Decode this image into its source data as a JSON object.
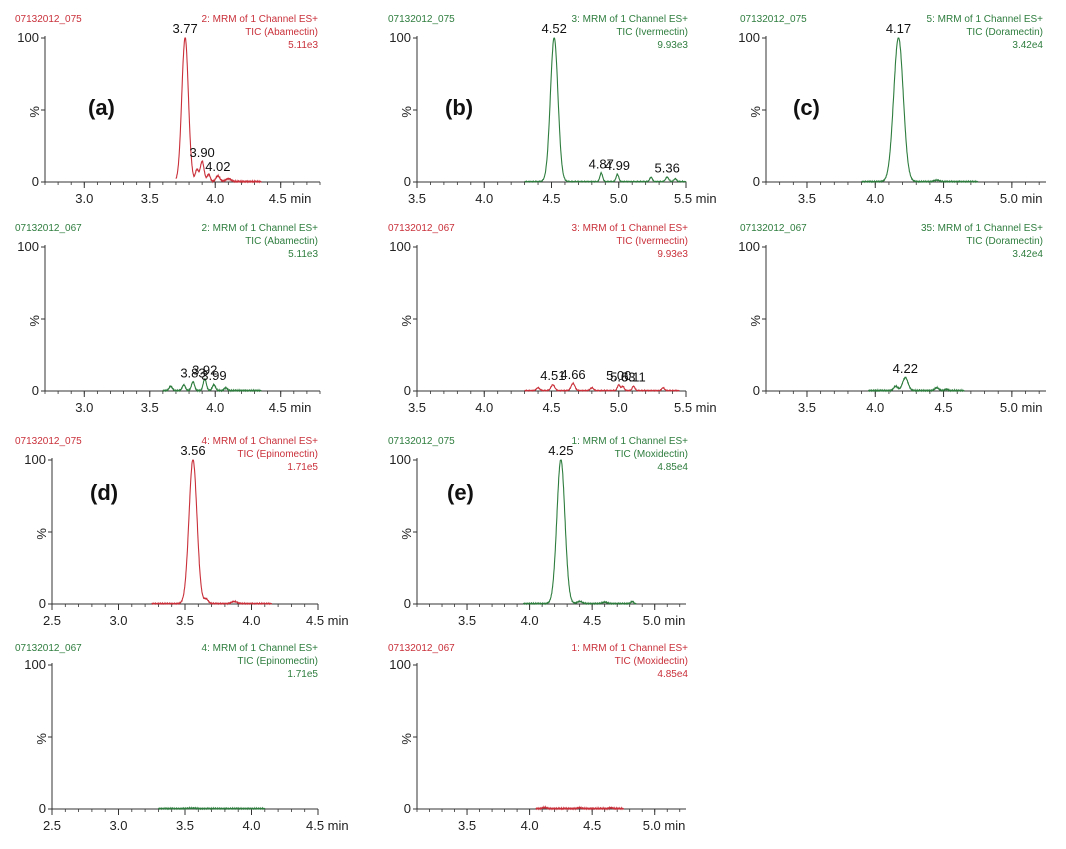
{
  "colors": {
    "red": "#c9303a",
    "green": "#2e7d3e",
    "axis": "#333333"
  },
  "chart_data": [
    {
      "type": "line",
      "panel_label": "(a)",
      "sample": "07132012_075",
      "channel": "2: MRM of 1 Channel ES+",
      "tic": "TIC (Abamectin)",
      "intensity": "5.11e3",
      "color": "red",
      "xlim": [
        2.7,
        4.8
      ],
      "ylim": [
        0,
        100
      ],
      "x_ticks": [
        "3.0",
        "3.5",
        "4.0",
        "4.5 min"
      ],
      "x_tick_values": [
        3.0,
        3.5,
        4.0,
        4.5
      ],
      "y_ticks": [
        "0",
        "%",
        "100"
      ],
      "peaks": [
        {
          "x": 3.77,
          "y": 100,
          "w": 0.025
        },
        {
          "x": 3.9,
          "y": 14,
          "w": 0.015
        },
        {
          "x": 3.86,
          "y": 8,
          "w": 0.012
        },
        {
          "x": 3.95,
          "y": 5,
          "w": 0.012
        },
        {
          "x": 4.02,
          "y": 4,
          "w": 0.015
        },
        {
          "x": 4.1,
          "y": 2,
          "w": 0.02
        }
      ],
      "range": [
        3.7,
        4.35
      ],
      "annotations": [
        {
          "text": "3.77",
          "x": 3.77,
          "y": 100
        },
        {
          "text": "3.90",
          "x": 3.9,
          "y": 14
        },
        {
          "text": "4.02",
          "x": 4.02,
          "y": 4
        }
      ]
    },
    {
      "type": "line",
      "panel_label": "(b)",
      "sample": "07132012_075",
      "channel": "3: MRM of 1 Channel ES+",
      "tic": "TIC (Ivermectin)",
      "intensity": "9.93e3",
      "color": "green",
      "xlim": [
        3.5,
        5.5
      ],
      "ylim": [
        0,
        100
      ],
      "x_ticks": [
        "3.5",
        "4.0",
        "4.5",
        "5.0",
        "5.5 min"
      ],
      "x_tick_values": [
        3.5,
        4.0,
        4.5,
        5.0,
        5.5
      ],
      "y_ticks": [
        "0",
        "%",
        "100"
      ],
      "peaks": [
        {
          "x": 4.52,
          "y": 100,
          "w": 0.028
        },
        {
          "x": 4.87,
          "y": 6,
          "w": 0.01
        },
        {
          "x": 4.99,
          "y": 5,
          "w": 0.01
        },
        {
          "x": 5.24,
          "y": 3,
          "w": 0.01
        },
        {
          "x": 5.36,
          "y": 3,
          "w": 0.012
        },
        {
          "x": 5.42,
          "y": 2,
          "w": 0.01
        }
      ],
      "range": [
        4.3,
        5.5
      ],
      "annotations": [
        {
          "text": "4.52",
          "x": 4.52,
          "y": 100
        },
        {
          "text": "4.87",
          "x": 4.87,
          "y": 6
        },
        {
          "text": "4.99",
          "x": 4.99,
          "y": 5
        },
        {
          "text": "5.36",
          "x": 5.36,
          "y": 3
        }
      ]
    },
    {
      "type": "line",
      "panel_label": "(c)",
      "sample": "07132012_075",
      "channel": "5: MRM of 1 Channel ES+",
      "tic": "TIC (Doramectin)",
      "intensity": "3.42e4",
      "color": "green",
      "xlim": [
        3.2,
        5.25
      ],
      "ylim": [
        0,
        100
      ],
      "x_ticks": [
        "3.5",
        "4.0",
        "4.5",
        "5.0 min"
      ],
      "x_tick_values": [
        3.5,
        4.0,
        4.5,
        5.0
      ],
      "y_ticks": [
        "0",
        "%",
        "100"
      ],
      "peaks": [
        {
          "x": 4.17,
          "y": 100,
          "w": 0.035
        },
        {
          "x": 4.45,
          "y": 1,
          "w": 0.02
        }
      ],
      "range": [
        3.9,
        4.75
      ],
      "annotations": [
        {
          "text": "4.17",
          "x": 4.17,
          "y": 100
        }
      ]
    },
    {
      "type": "line",
      "panel_label": "",
      "sample": "07132012_067",
      "channel": "2: MRM of 1 Channel ES+",
      "tic": "TIC (Abamectin)",
      "intensity": "5.11e3",
      "color": "green",
      "xlim": [
        2.7,
        4.8
      ],
      "ylim": [
        0,
        100
      ],
      "x_ticks": [
        "3.0",
        "3.5",
        "4.0",
        "4.5 min"
      ],
      "x_tick_values": [
        3.0,
        3.5,
        4.0,
        4.5
      ],
      "y_ticks": [
        "0",
        "%",
        "100"
      ],
      "peaks": [
        {
          "x": 3.66,
          "y": 3,
          "w": 0.012
        },
        {
          "x": 3.76,
          "y": 4,
          "w": 0.012
        },
        {
          "x": 3.83,
          "y": 6,
          "w": 0.012
        },
        {
          "x": 3.92,
          "y": 8,
          "w": 0.012
        },
        {
          "x": 3.99,
          "y": 4,
          "w": 0.012
        },
        {
          "x": 4.08,
          "y": 2,
          "w": 0.012
        }
      ],
      "range": [
        3.6,
        4.35
      ],
      "annotations": [
        {
          "text": "3.83",
          "x": 3.83,
          "y": 6
        },
        {
          "text": "3.92",
          "x": 3.92,
          "y": 8
        },
        {
          "text": "3.99",
          "x": 3.99,
          "y": 4
        }
      ]
    },
    {
      "type": "line",
      "panel_label": "",
      "sample": "07132012_067",
      "channel": "3: MRM of 1 Channel ES+",
      "tic": "TIC (Ivermectin)",
      "intensity": "9.93e3",
      "color": "red",
      "xlim": [
        3.5,
        5.5
      ],
      "ylim": [
        0,
        100
      ],
      "x_ticks": [
        "3.5",
        "4.0",
        "4.5",
        "5.0",
        "5.5 min"
      ],
      "x_tick_values": [
        3.5,
        4.0,
        4.5,
        5.0,
        5.5
      ],
      "y_ticks": [
        "0",
        "%",
        "100"
      ],
      "peaks": [
        {
          "x": 4.4,
          "y": 2,
          "w": 0.012
        },
        {
          "x": 4.51,
          "y": 4,
          "w": 0.014
        },
        {
          "x": 4.66,
          "y": 5,
          "w": 0.014
        },
        {
          "x": 4.8,
          "y": 2,
          "w": 0.012
        },
        {
          "x": 5.0,
          "y": 4,
          "w": 0.01
        },
        {
          "x": 5.03,
          "y": 3,
          "w": 0.01
        },
        {
          "x": 5.11,
          "y": 3,
          "w": 0.01
        },
        {
          "x": 5.33,
          "y": 2,
          "w": 0.01
        }
      ],
      "range": [
        4.3,
        5.45
      ],
      "annotations": [
        {
          "text": "4.51",
          "x": 4.51,
          "y": 4
        },
        {
          "text": "4.66",
          "x": 4.66,
          "y": 5
        },
        {
          "text": "5.00",
          "x": 5.0,
          "y": 4
        },
        {
          "text": "5.03",
          "x": 5.03,
          "y": 3
        },
        {
          "text": "5.11",
          "x": 5.11,
          "y": 3
        }
      ]
    },
    {
      "type": "line",
      "panel_label": "",
      "sample": "07132012_067",
      "channel": "35: MRM of 1 Channel ES+",
      "tic": "TIC (Doramectin)",
      "intensity": "3.42e4",
      "color": "green",
      "xlim": [
        3.2,
        5.25
      ],
      "ylim": [
        0,
        100
      ],
      "x_ticks": [
        "3.5",
        "4.0",
        "4.5",
        "5.0 min"
      ],
      "x_tick_values": [
        3.5,
        4.0,
        4.5,
        5.0
      ],
      "y_ticks": [
        "0",
        "%",
        "100"
      ],
      "peaks": [
        {
          "x": 4.15,
          "y": 3,
          "w": 0.015
        },
        {
          "x": 4.22,
          "y": 9,
          "w": 0.02
        },
        {
          "x": 4.45,
          "y": 2,
          "w": 0.015
        },
        {
          "x": 4.52,
          "y": 1,
          "w": 0.012
        }
      ],
      "range": [
        3.95,
        4.65
      ],
      "annotations": [
        {
          "text": "4.22",
          "x": 4.22,
          "y": 9
        }
      ]
    },
    {
      "type": "line",
      "panel_label": "(d)",
      "sample": "07132012_075",
      "channel": "4: MRM of 1 Channel ES+",
      "tic": "TIC (Epinomectin)",
      "intensity": "1.71e5",
      "color": "red",
      "xlim": [
        2.5,
        4.5
      ],
      "ylim": [
        0,
        100
      ],
      "x_ticks": [
        "2.5",
        "3.0",
        "3.5",
        "4.0",
        "4.5 min"
      ],
      "x_tick_values": [
        2.5,
        3.0,
        3.5,
        4.0,
        4.5
      ],
      "y_ticks": [
        "0",
        "%",
        "100"
      ],
      "peaks": [
        {
          "x": 3.56,
          "y": 100,
          "w": 0.03
        },
        {
          "x": 3.66,
          "y": 3,
          "w": 0.015
        },
        {
          "x": 3.87,
          "y": 1.5,
          "w": 0.02
        }
      ],
      "range": [
        3.25,
        4.15
      ],
      "annotations": [
        {
          "text": "3.56",
          "x": 3.56,
          "y": 100
        }
      ]
    },
    {
      "type": "line",
      "panel_label": "(e)",
      "sample": "07132012_075",
      "channel": "1: MRM of 1 Channel ES+",
      "tic": "TIC (Moxidectin)",
      "intensity": "4.85e4",
      "color": "green",
      "xlim": [
        3.1,
        5.25
      ],
      "ylim": [
        0,
        100
      ],
      "x_ticks": [
        "3.5",
        "4.0",
        "4.5",
        "5.0 min"
      ],
      "x_tick_values": [
        3.5,
        4.0,
        4.5,
        5.0
      ],
      "y_ticks": [
        "0",
        "%",
        "100"
      ],
      "peaks": [
        {
          "x": 4.25,
          "y": 100,
          "w": 0.032
        },
        {
          "x": 4.4,
          "y": 1.5,
          "w": 0.02
        },
        {
          "x": 4.6,
          "y": 1,
          "w": 0.02
        },
        {
          "x": 4.82,
          "y": 1.5,
          "w": 0.01
        }
      ],
      "range": [
        3.95,
        4.85
      ],
      "annotations": [
        {
          "text": "4.25",
          "x": 4.25,
          "y": 100
        }
      ]
    },
    {
      "type": "line",
      "panel_label": "",
      "sample": "07132012_067",
      "channel": "4: MRM of 1 Channel ES+",
      "tic": "TIC (Epinomectin)",
      "intensity": "1.71e5",
      "color": "green",
      "xlim": [
        2.5,
        4.5
      ],
      "ylim": [
        0,
        100
      ],
      "x_ticks": [
        "2.5",
        "3.0",
        "3.5",
        "4.0",
        "4.5 min"
      ],
      "x_tick_values": [
        2.5,
        3.0,
        3.5,
        4.0,
        4.5
      ],
      "y_ticks": [
        "0",
        "%",
        "100"
      ],
      "peaks": [
        {
          "x": 3.55,
          "y": 0.3,
          "w": 0.03
        }
      ],
      "range": [
        3.3,
        4.1
      ],
      "annotations": []
    },
    {
      "type": "line",
      "panel_label": "",
      "sample": "07132012_067",
      "channel": "1: MRM of 1 Channel ES+",
      "tic": "TIC (Moxidectin)",
      "intensity": "4.85e4",
      "color": "red",
      "xlim": [
        3.1,
        5.25
      ],
      "ylim": [
        0,
        100
      ],
      "x_ticks": [
        "3.5",
        "4.0",
        "4.5",
        "5.0 min"
      ],
      "x_tick_values": [
        3.5,
        4.0,
        4.5,
        5.0
      ],
      "y_ticks": [
        "0",
        "%",
        "100"
      ],
      "peaks": [
        {
          "x": 4.12,
          "y": 0.8,
          "w": 0.015
        },
        {
          "x": 4.4,
          "y": 0.6,
          "w": 0.015
        },
        {
          "x": 4.65,
          "y": 0.6,
          "w": 0.015
        }
      ],
      "range": [
        4.05,
        4.75
      ],
      "annotations": []
    }
  ]
}
